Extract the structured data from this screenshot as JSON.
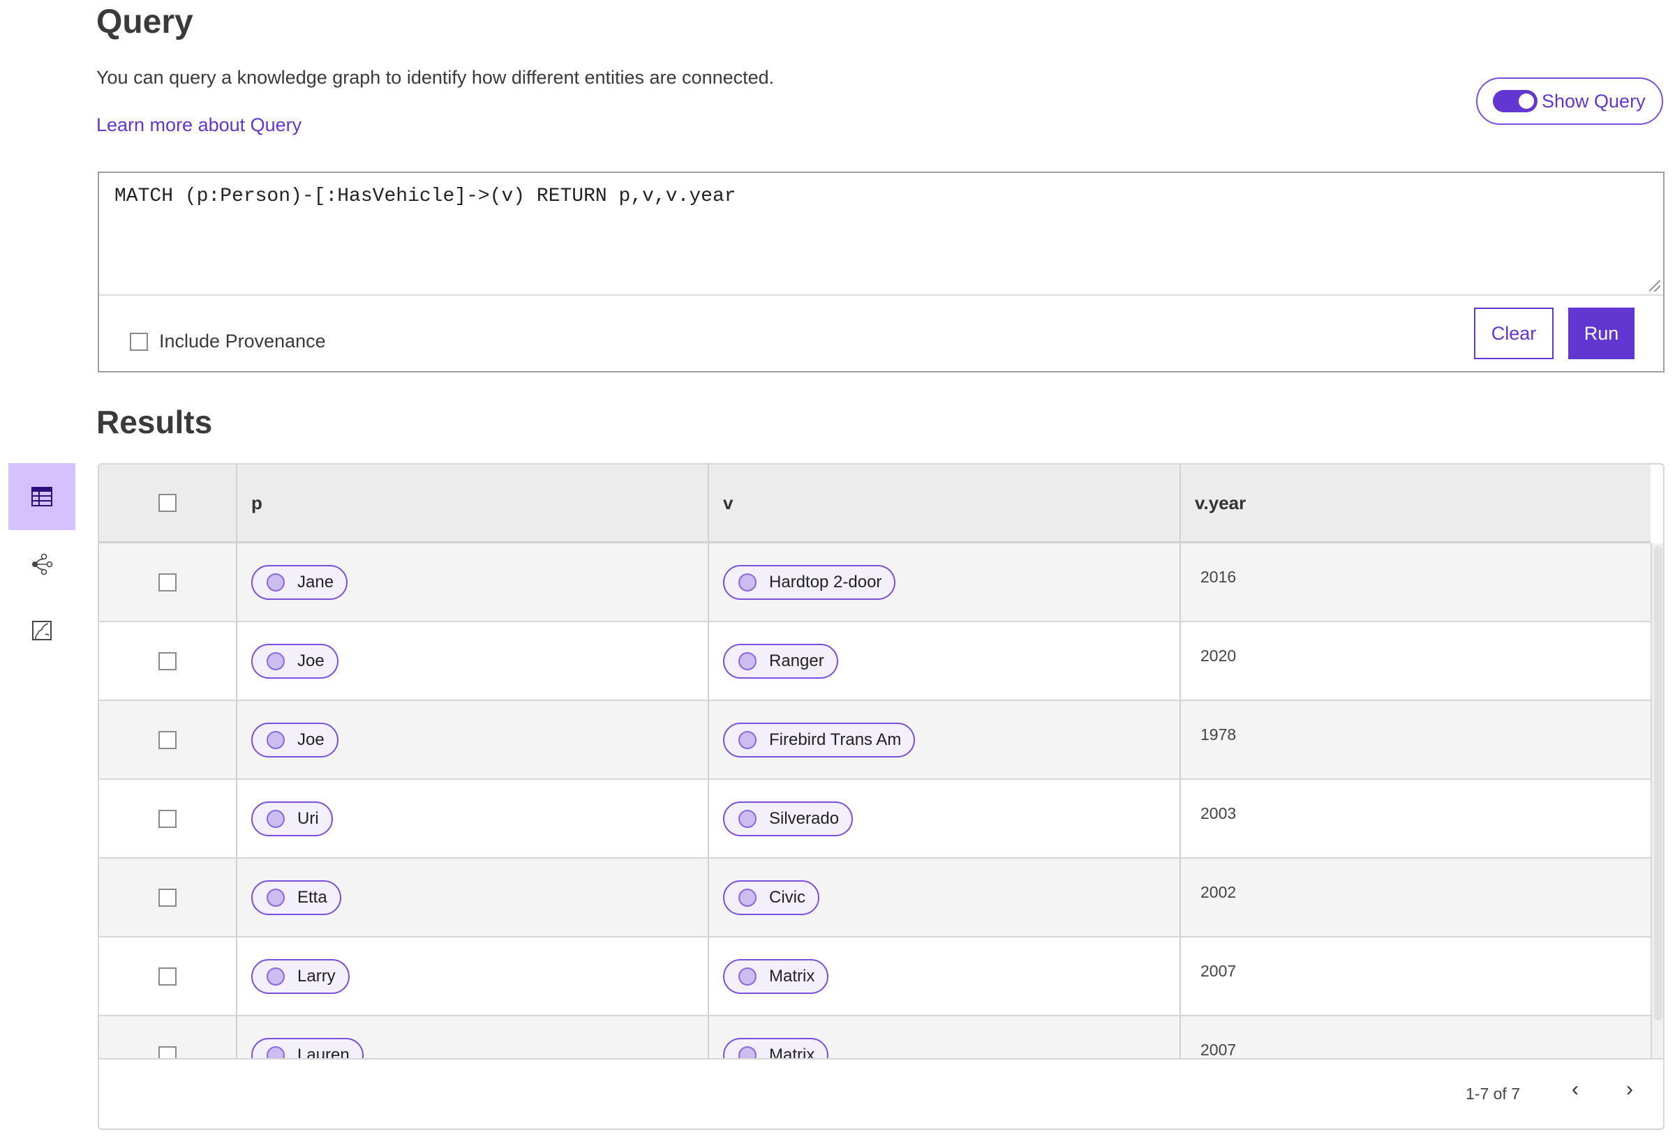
{
  "header": {
    "title": "Query",
    "description": "You can query a knowledge graph to identify how different entities are connected.",
    "learn_more": "Learn more about Query",
    "show_query_label": "Show Query",
    "show_query_on": true
  },
  "query": {
    "text": "MATCH (p:Person)-[:HasVehicle]->(v) RETURN p,v,v.year",
    "include_provenance_label": "Include Provenance",
    "include_provenance_checked": false,
    "clear_label": "Clear",
    "run_label": "Run"
  },
  "results": {
    "title": "Results",
    "view_icons": [
      "table-icon",
      "graph-icon",
      "chart-icon"
    ],
    "active_view": "table",
    "columns": [
      "p",
      "v",
      "v.year"
    ],
    "rows": [
      {
        "p": "Jane",
        "v": "Hardtop 2-door",
        "year": "2016"
      },
      {
        "p": "Joe",
        "v": "Ranger",
        "year": "2020"
      },
      {
        "p": "Joe",
        "v": "Firebird Trans Am",
        "year": "1978"
      },
      {
        "p": "Uri",
        "v": "Silverado",
        "year": "2003"
      },
      {
        "p": "Etta",
        "v": "Civic",
        "year": "2002"
      },
      {
        "p": "Larry",
        "v": "Matrix",
        "year": "2007"
      },
      {
        "p": "Lauren",
        "v": "Matrix",
        "year": "2007"
      }
    ],
    "pagination": "1-7 of 7"
  },
  "colors": {
    "accent": "#6236d0",
    "active_view_bg": "#d3c2fd",
    "chip_bg": "#f3f0fb"
  }
}
